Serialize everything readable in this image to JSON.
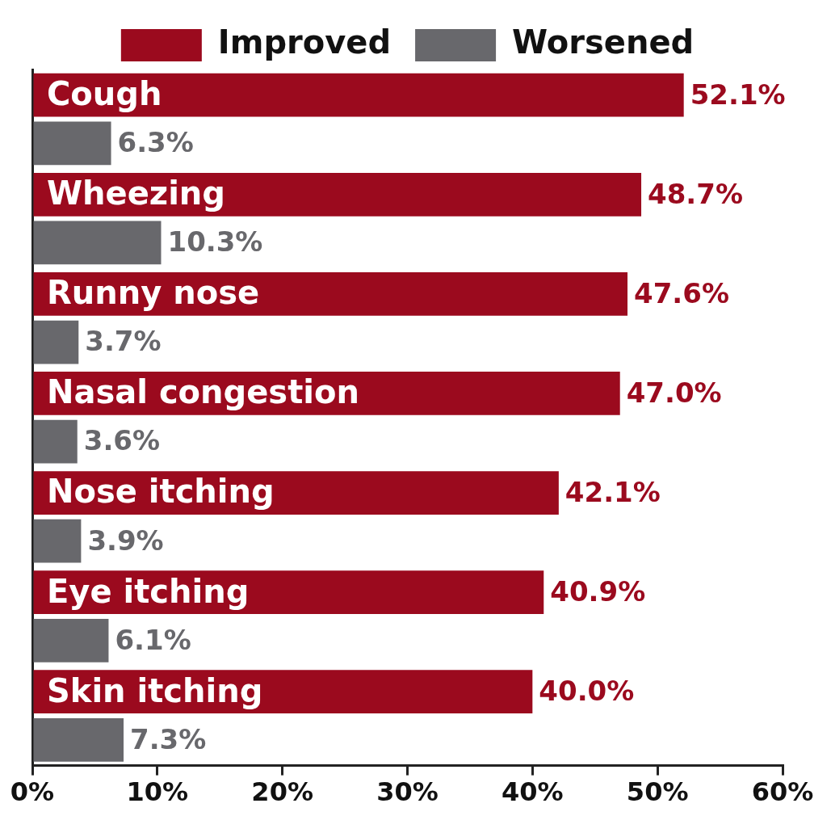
{
  "chart_data": {
    "type": "bar",
    "orientation": "horizontal",
    "categories": [
      "Cough",
      "Wheezing",
      "Runny nose",
      "Nasal congestion",
      "Nose itching",
      "Eye itching",
      "Skin itching"
    ],
    "series": [
      {
        "name": "Improved",
        "color": "#9b0a1e",
        "values": [
          52.1,
          48.7,
          47.6,
          47.0,
          42.1,
          40.9,
          40.0
        ],
        "value_labels": [
          "52.1%",
          "48.7%",
          "47.6%",
          "47.0%",
          "42.1%",
          "40.9%",
          "40.0%"
        ]
      },
      {
        "name": "Worsened",
        "color": "#68686c",
        "values": [
          6.3,
          10.3,
          3.7,
          3.6,
          3.9,
          6.1,
          7.3
        ],
        "value_labels": [
          "6.3%",
          "10.3%",
          "3.7%",
          "3.6%",
          "3.9%",
          "6.1%",
          "7.3%"
        ]
      }
    ],
    "xlim": [
      0,
      60
    ],
    "xticks": [
      {
        "value": 0,
        "label": "0%"
      },
      {
        "value": 10,
        "label": "10%"
      },
      {
        "value": 20,
        "label": "20%"
      },
      {
        "value": 30,
        "label": "30%"
      },
      {
        "value": 40,
        "label": "40%"
      },
      {
        "value": 50,
        "label": "50%"
      },
      {
        "value": 60,
        "label": "60%"
      }
    ],
    "grid": false,
    "legend": "top"
  }
}
